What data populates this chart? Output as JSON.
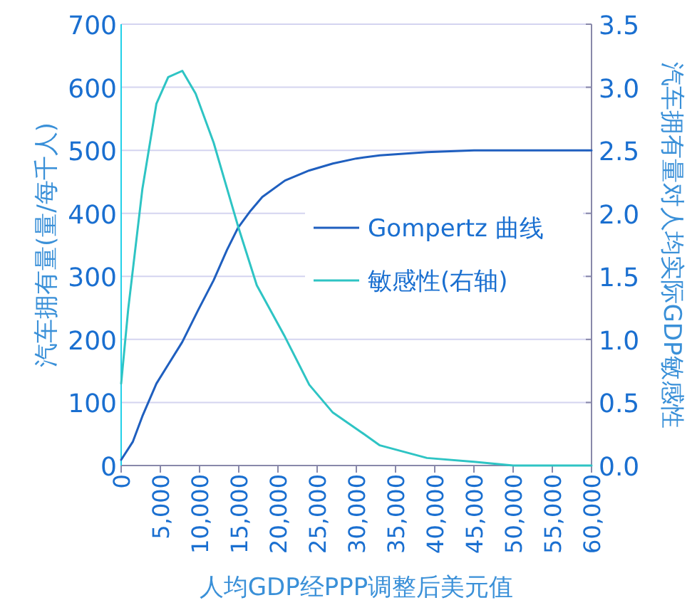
{
  "chart_data": {
    "type": "line",
    "xlabel": "人均GDP经PPP调整后美元值",
    "ylabel": "汽车拥有量(量/每千人)",
    "y2label": "汽车拥有量对人均实际GDP敏感性",
    "xlim": [
      0,
      60000
    ],
    "xticks": [
      0,
      {
        "value": 5000,
        "label": "5,000"
      },
      {
        "value": 10000,
        "label": "10,000"
      },
      {
        "value": 15000,
        "label": "15,000"
      },
      {
        "value": 20000,
        "label": "20,000"
      },
      {
        "value": 25000,
        "label": "25,000"
      },
      {
        "value": 30000,
        "label": "30,000"
      },
      {
        "value": 35000,
        "label": "35,000"
      },
      {
        "value": 40000,
        "label": "40,000"
      },
      {
        "value": 45000,
        "label": "45,000"
      },
      {
        "value": 50000,
        "label": "50,000"
      },
      {
        "value": 55000,
        "label": "55,000"
      },
      {
        "value": 60000,
        "label": "60,000"
      }
    ],
    "ylim": [
      0,
      700
    ],
    "yticks": [
      0,
      100,
      200,
      300,
      400,
      500,
      600,
      700
    ],
    "y2lim": [
      0,
      3.5
    ],
    "y2ticks": [
      {
        "value": 0,
        "label": "0.0"
      },
      {
        "value": 0.5,
        "label": "0.5"
      },
      {
        "value": 1,
        "label": "1.0"
      },
      {
        "value": 1.5,
        "label": "1.5"
      },
      {
        "value": 2,
        "label": "2.0"
      },
      {
        "value": 2.5,
        "label": "2.5"
      },
      {
        "value": 3,
        "label": "3.0"
      },
      {
        "value": 3.5,
        "label": "3.5"
      }
    ],
    "grid": "y",
    "legend": "right",
    "series": [
      {
        "name": "Gompertz 曲线",
        "color": "#1f5fbf",
        "x": [
          0,
          1500,
          2700,
          4500,
          6000,
          7800,
          9800,
          11800,
          13500,
          14900,
          16500,
          18000,
          20900,
          24000,
          27000,
          30000,
          33000,
          39000,
          45000,
          60000
        ],
        "values": [
          9,
          38,
          78,
          130,
          160,
          196,
          246,
          294,
          342,
          377,
          404,
          426,
          452,
          468,
          479,
          487,
          492,
          497,
          500,
          500
        ]
      },
      {
        "name": "敏感性(右轴)",
        "axis": "y2",
        "color": "#2ec4c4",
        "x": [
          0,
          900,
          2700,
          4500,
          6000,
          7800,
          9500,
          11800,
          14900,
          17300,
          20900,
          24000,
          27000,
          30500,
          33000,
          39000,
          45000,
          50000,
          60000
        ],
        "values": [
          0.65,
          1.24,
          2.19,
          2.87,
          3.08,
          3.13,
          2.95,
          2.56,
          1.9,
          1.43,
          1.02,
          0.64,
          0.42,
          0.27,
          0.16,
          0.06,
          0.03,
          0,
          0
        ]
      }
    ]
  }
}
